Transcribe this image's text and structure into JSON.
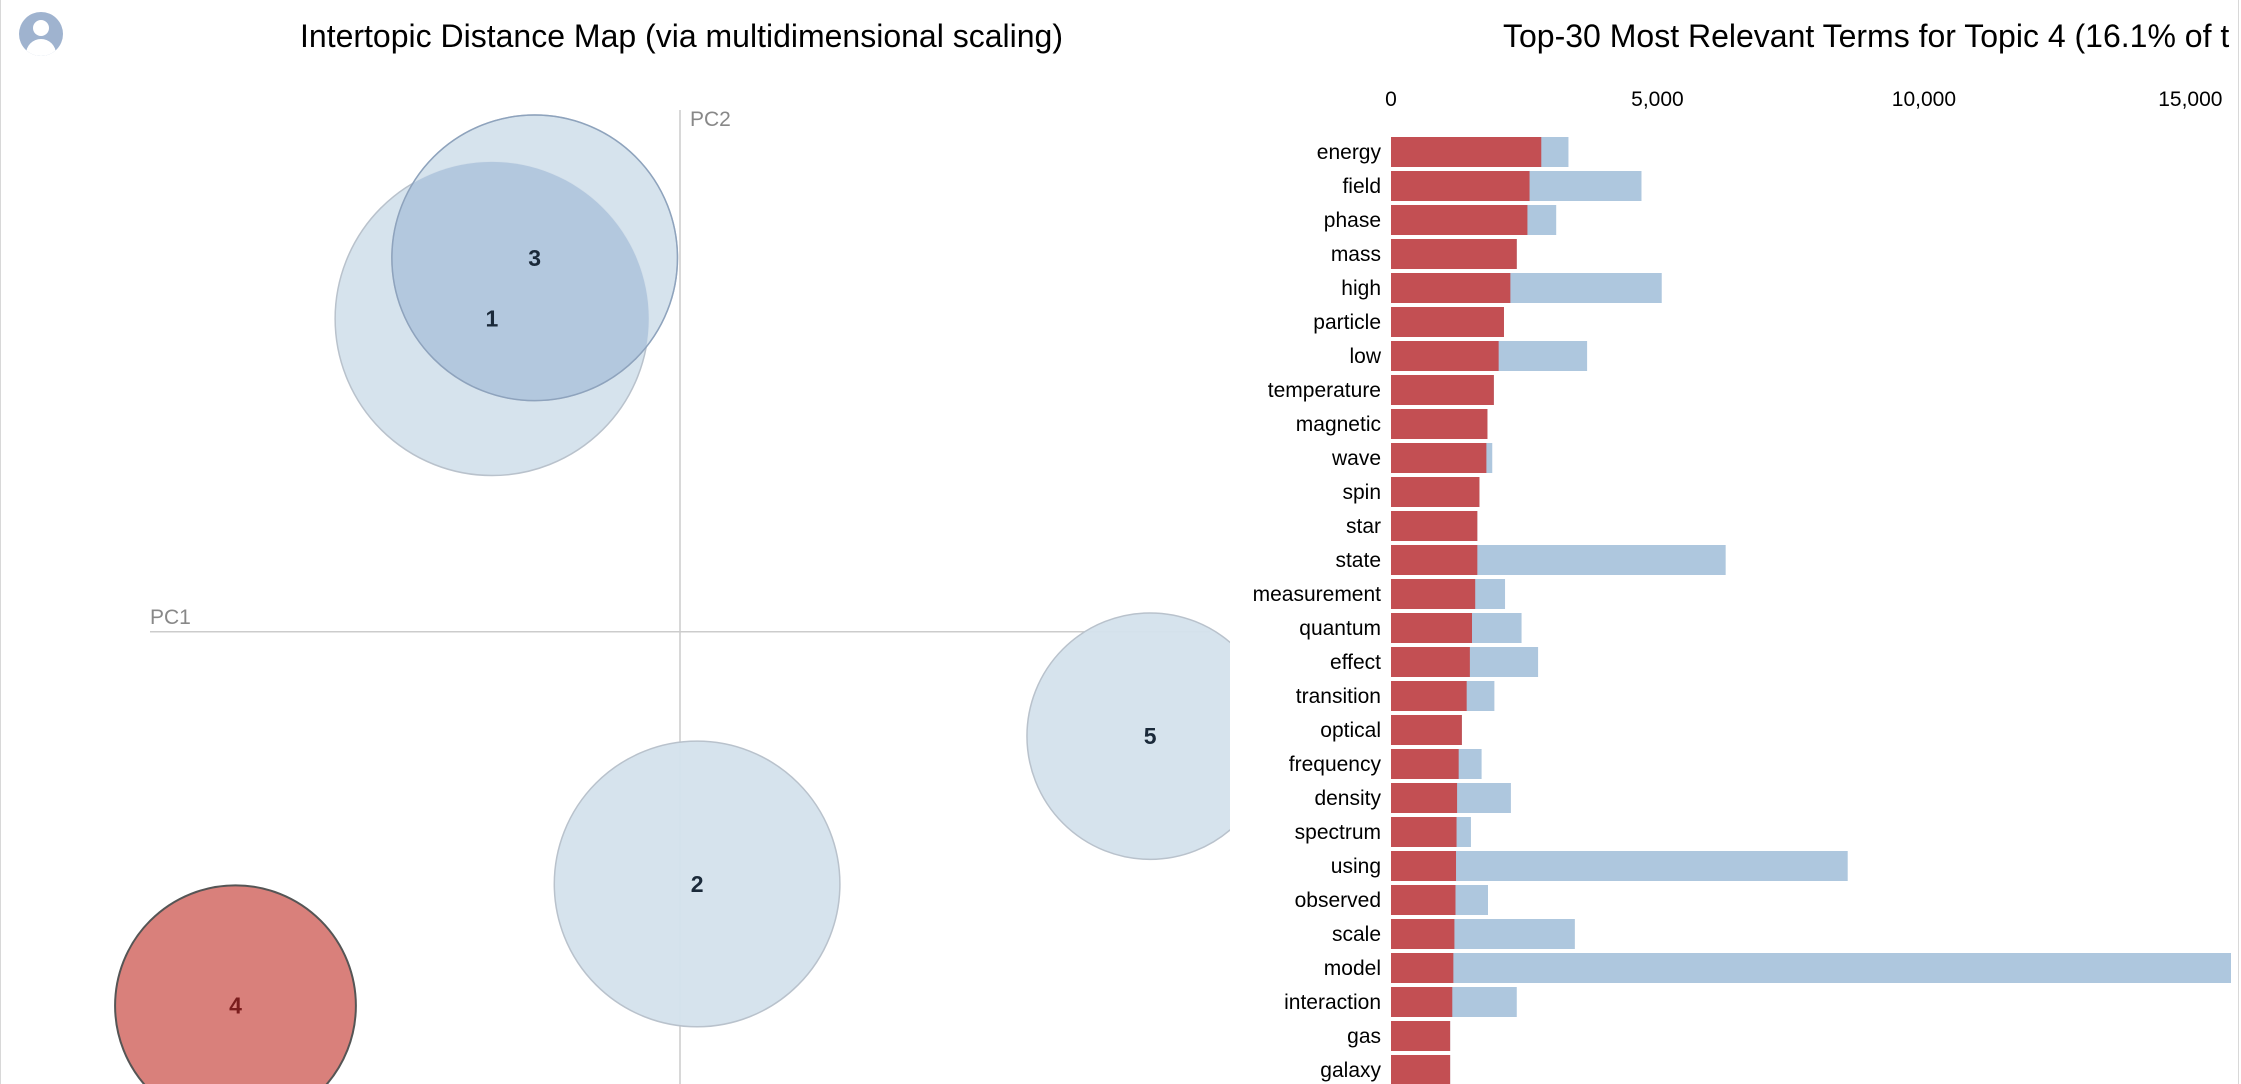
{
  "mds": {
    "title": "Intertopic Distance Map (via multidimensional scaling)",
    "axis_x_label": "PC1",
    "axis_y_label": "PC2",
    "selected_color": "#d9807b",
    "default_color": "#d4e1ec"
  },
  "bars": {
    "title": "Top-30 Most Relevant Terms for Topic 4 (16.1% of t",
    "overall_color": "#aec7de",
    "topic_color": "#c34f53"
  },
  "chart_data": [
    {
      "type": "scatter",
      "title": "Intertopic Distance Map (via multidimensional scaling)",
      "xlabel": "PC1",
      "ylabel": "PC2",
      "points": [
        {
          "topic": "1",
          "x": -0.22,
          "y": 0.36,
          "size": 0.56,
          "selected": false
        },
        {
          "topic": "2",
          "x": 0.02,
          "y": -0.29,
          "size": 0.51,
          "selected": false
        },
        {
          "topic": "3",
          "x": -0.17,
          "y": 0.43,
          "size": 0.51,
          "selected": false
        },
        {
          "topic": "4",
          "x": -0.52,
          "y": -0.43,
          "size": 0.43,
          "selected": true
        },
        {
          "topic": "5",
          "x": 0.55,
          "y": -0.12,
          "size": 0.44,
          "selected": false
        }
      ],
      "xlim": [
        -0.62,
        0.62
      ],
      "ylim": [
        -0.52,
        0.6
      ],
      "grid": false
    },
    {
      "type": "bar",
      "orientation": "horizontal",
      "title": "Top-30 Most Relevant Terms for Topic 4 (16.1% of t",
      "tick_labels": [
        "0",
        "5,000",
        "10,000",
        "15,000"
      ],
      "xlim": [
        0,
        15800
      ],
      "categories": [
        "energy",
        "field",
        "phase",
        "mass",
        "high",
        "particle",
        "low",
        "temperature",
        "magnetic",
        "wave",
        "spin",
        "star",
        "state",
        "measurement",
        "quantum",
        "effect",
        "transition",
        "optical",
        "frequency",
        "density",
        "spectrum",
        "using",
        "observed",
        "scale",
        "model",
        "interaction",
        "gas",
        "galaxy"
      ],
      "series": [
        {
          "role": "overall",
          "values": [
            3330,
            4700,
            3100,
            2360,
            5080,
            2120,
            3680,
            1930,
            1810,
            1900,
            1660,
            1620,
            6280,
            2140,
            2450,
            2760,
            1940,
            1330,
            1700,
            2250,
            1500,
            8570,
            1820,
            3450,
            15850,
            2360,
            1110,
            1110
          ]
        },
        {
          "role": "topic",
          "values": [
            2820,
            2600,
            2560,
            2360,
            2240,
            2120,
            2020,
            1930,
            1810,
            1790,
            1660,
            1620,
            1620,
            1580,
            1520,
            1480,
            1420,
            1330,
            1270,
            1240,
            1230,
            1220,
            1210,
            1190,
            1170,
            1150,
            1110,
            1110
          ]
        }
      ]
    }
  ]
}
